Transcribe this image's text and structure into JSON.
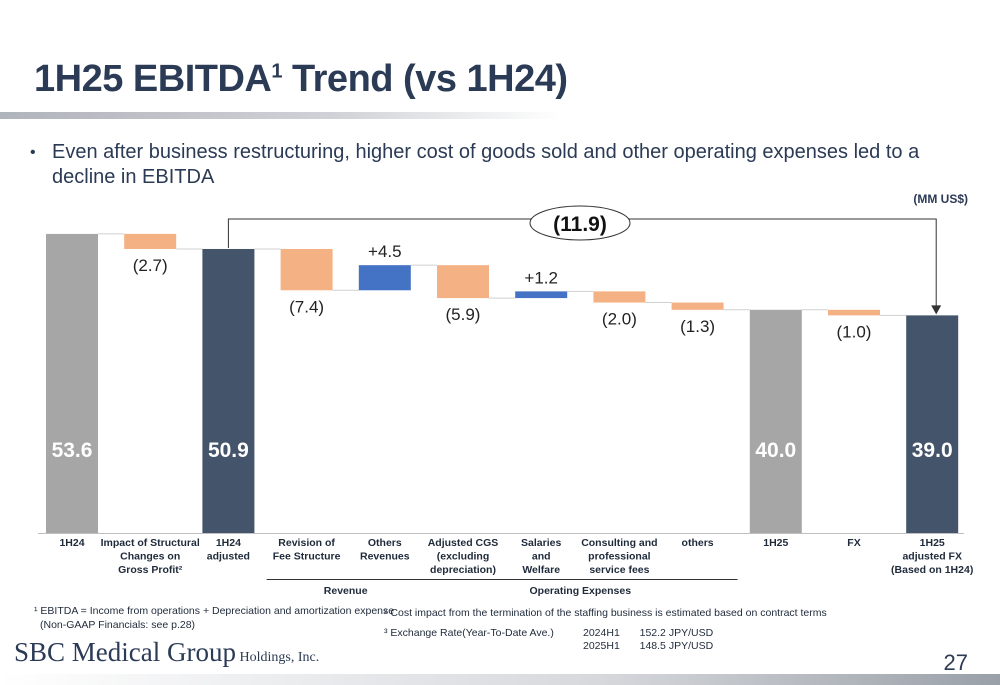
{
  "header": {
    "title_main": "1H25 EBITDA",
    "title_sup": "1",
    "title_rest": " Trend (vs 1H24)",
    "bullet": "Even after business restructuring, higher cost of goods sold and other operating expenses led to a decline in EBITDA",
    "bullet_symbol": "•"
  },
  "unit_label": "(MM US$)",
  "chart_data": {
    "type": "bar",
    "subtype": "waterfall",
    "ylim": [
      0,
      56
    ],
    "total_change_label": "(11.9)",
    "total_change_value": -11.9,
    "colors": {
      "base_gray": "#a6a6a6",
      "base_dark": "#44546a",
      "decrease": "#f4b183",
      "increase": "#4472c4"
    },
    "steps": [
      {
        "category": "1H24",
        "kind": "total",
        "value": 53.6,
        "label": "53.6",
        "color": "gray"
      },
      {
        "category": "Impact of Structural Changes on Gross Profit²",
        "kind": "delta",
        "value": -2.7,
        "label": "(2.7)"
      },
      {
        "category": "1H24 adjusted",
        "kind": "total",
        "value": 50.9,
        "label": "50.9",
        "color": "dark"
      },
      {
        "category": "Revision of Fee Structure",
        "kind": "delta",
        "value": -7.4,
        "label": "(7.4)"
      },
      {
        "category": "Others Revenues",
        "kind": "delta",
        "value": 4.5,
        "label": "+4.5"
      },
      {
        "category": "Adjusted CGS (excluding depreciation)",
        "kind": "delta",
        "value": -5.9,
        "label": "(5.9)"
      },
      {
        "category": "Salaries and Welfare",
        "kind": "delta",
        "value": 1.2,
        "label": "+1.2"
      },
      {
        "category": "Consulting and professional service fees",
        "kind": "delta",
        "value": -2.0,
        "label": "(2.0)"
      },
      {
        "category": "others",
        "kind": "delta",
        "value": -1.3,
        "label": "(1.3)"
      },
      {
        "category": "1H25",
        "kind": "total",
        "value": 40.0,
        "label": "40.0",
        "color": "gray"
      },
      {
        "category": "FX",
        "kind": "delta",
        "value": -1.0,
        "label": "(1.0)"
      },
      {
        "category": "1H25 adjusted FX (Based on 1H24)",
        "kind": "total",
        "value": 39.0,
        "label": "39.0",
        "color": "dark"
      }
    ],
    "category_lines": [
      [
        "1H24"
      ],
      [
        "Impact of Structural",
        "Changes on",
        "Gross Profit²"
      ],
      [
        "1H24",
        "adjusted"
      ],
      [
        "Revision of",
        "Fee Structure"
      ],
      [
        "Others",
        "Revenues"
      ],
      [
        "Adjusted CGS",
        "(excluding",
        "depreciation)"
      ],
      [
        "Salaries",
        "and",
        "Welfare"
      ],
      [
        "Consulting and",
        "professional",
        "service fees"
      ],
      [
        "others"
      ],
      [
        "1H25"
      ],
      [
        "FX"
      ],
      [
        "1H25",
        "adjusted FX",
        "(Based on 1H24)"
      ]
    ],
    "groups": [
      {
        "label": "Revenue",
        "from": 3,
        "to": 4
      },
      {
        "label": "Operating Expenses",
        "from": 5,
        "to": 8
      }
    ]
  },
  "footnotes": {
    "note1_line1": "¹ EBITDA = Income from operations + Depreciation and amortization expense",
    "note1_line2": "(Non-GAAP Financials: see p.28)",
    "note2": "² Cost impact from the termination of the staffing business is estimated based on contract terms",
    "note3_label": "³ Exchange Rate(Year-To-Date Ave.)",
    "rates": [
      {
        "period": "2024H1",
        "rate": "152.2 JPY/USD"
      },
      {
        "period": "2025H1",
        "rate": "148.5 JPY/USD"
      }
    ]
  },
  "footer": {
    "logo_main": "SBC Medical Group",
    "logo_sub": " Holdings, Inc.",
    "page_number": "27"
  }
}
